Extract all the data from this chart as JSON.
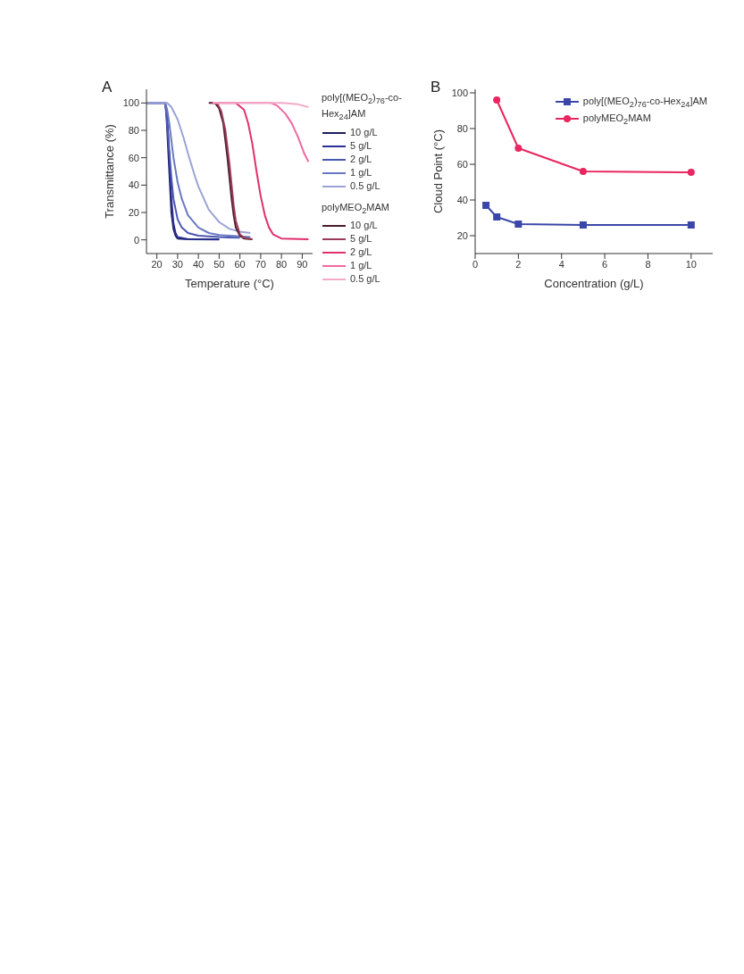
{
  "chart_data": [
    {
      "type": "line",
      "title": "A",
      "xlabel": "Temperature (°C)",
      "ylabel": "Transmittance (%)",
      "legend_title": "poly[(MEO$_{2}$)$_{76}$-co-Hex$_{24}$]AM",
      "annotations": [
        "polyMEO$_{2}$MAM"
      ],
      "legend": "right",
      "xlim": [
        15,
        95
      ],
      "xticks": [
        20,
        30,
        40,
        50,
        60,
        70,
        80,
        90
      ],
      "ylim": [
        -10,
        110
      ],
      "yticks": [
        0,
        20,
        40,
        60,
        80,
        100
      ],
      "series": [
        {
          "name": "10 g/L",
          "color": "#1c1d5e",
          "x": [
            15,
            24,
            24.5,
            25,
            26,
            27,
            28,
            29,
            30,
            35,
            50
          ],
          "values": [
            100,
            100,
            95,
            80,
            50,
            20,
            8,
            3,
            1,
            0.5,
            0.5
          ]
        },
        {
          "name": "5 g/L",
          "color": "#2a3192",
          "x": [
            15,
            24,
            25,
            26,
            27,
            28,
            29,
            30,
            35,
            50
          ],
          "values": [
            100,
            100,
            90,
            60,
            30,
            12,
            5,
            2,
            0.5,
            0.3
          ]
        },
        {
          "name": "2 g/L",
          "color": "#4a56b0",
          "x": [
            15,
            24,
            25,
            26,
            27,
            28,
            30,
            32,
            35,
            40,
            50,
            60
          ],
          "values": [
            100,
            100,
            85,
            65,
            45,
            30,
            15,
            9,
            5,
            3,
            2,
            1.5
          ]
        },
        {
          "name": "1 g/L",
          "color": "#6a78c4",
          "x": [
            15,
            24,
            25,
            26,
            28,
            30,
            32,
            35,
            40,
            45,
            50,
            55,
            60,
            65
          ],
          "values": [
            100,
            100,
            95,
            85,
            60,
            42,
            30,
            18,
            9,
            5,
            3.5,
            3,
            2.5,
            2
          ]
        },
        {
          "name": "0.5 g/L",
          "color": "#9aa3d6",
          "x": [
            15,
            25,
            27,
            30,
            33,
            35,
            38,
            40,
            45,
            50,
            55,
            60,
            65
          ],
          "values": [
            100,
            100,
            97,
            88,
            74,
            63,
            48,
            39,
            22,
            13,
            8,
            6,
            5
          ]
        },
        {
          "name": "10 g/L",
          "color": "#4a1a2a",
          "x": [
            45,
            48,
            50,
            52,
            54,
            55,
            56,
            57,
            58,
            60,
            62,
            66
          ],
          "values": [
            100,
            100,
            96,
            85,
            60,
            45,
            30,
            18,
            9,
            3,
            1,
            0.5
          ]
        },
        {
          "name": "5 g/L",
          "color": "#9b3a5a",
          "x": [
            46,
            49,
            51,
            53,
            55,
            56,
            57,
            58,
            60,
            62,
            66
          ],
          "values": [
            100,
            100,
            94,
            80,
            55,
            40,
            25,
            14,
            4,
            1.5,
            0.5
          ]
        },
        {
          "name": "2 g/L",
          "color": "#e0306e",
          "x": [
            47,
            58,
            62,
            64,
            66,
            68,
            70,
            72,
            74,
            76,
            80,
            93
          ],
          "values": [
            100,
            100,
            95,
            85,
            70,
            50,
            32,
            18,
            9,
            4,
            1,
            0.5
          ]
        },
        {
          "name": "1 g/L",
          "color": "#ee6aa0",
          "x": [
            47,
            75,
            78,
            82,
            85,
            88,
            91,
            93
          ],
          "values": [
            100,
            100,
            98,
            92,
            85,
            75,
            63,
            57
          ]
        },
        {
          "name": "0.5 g/L",
          "color": "#f4a9c8",
          "x": [
            47,
            80,
            88,
            93
          ],
          "values": [
            100,
            100,
            99,
            97
          ]
        }
      ]
    },
    {
      "type": "line",
      "title": "B",
      "xlabel": "Concentration (g/L)",
      "ylabel": "Cloud Point (°C)",
      "legend": "top right",
      "xlim": [
        0,
        11
      ],
      "xticks": [
        0,
        2,
        4,
        6,
        8,
        10
      ],
      "ylim": [
        10,
        102
      ],
      "yticks": [
        20,
        40,
        60,
        80,
        100
      ],
      "series": [
        {
          "name": "poly[(MEO$_{2}$)$_{76}$-co-Hex$_{24}$]AM",
          "color": "#3a47a8",
          "marker": "square",
          "x": [
            0.5,
            1,
            2,
            5,
            10
          ],
          "values": [
            37,
            30.5,
            26.5,
            26,
            26
          ]
        },
        {
          "name": "polyMEO$_{2}$MAM",
          "color": "#e8265f",
          "marker": "circle",
          "x": [
            1,
            2,
            5,
            10
          ],
          "values": [
            96,
            69,
            56,
            55.5
          ]
        }
      ]
    }
  ]
}
